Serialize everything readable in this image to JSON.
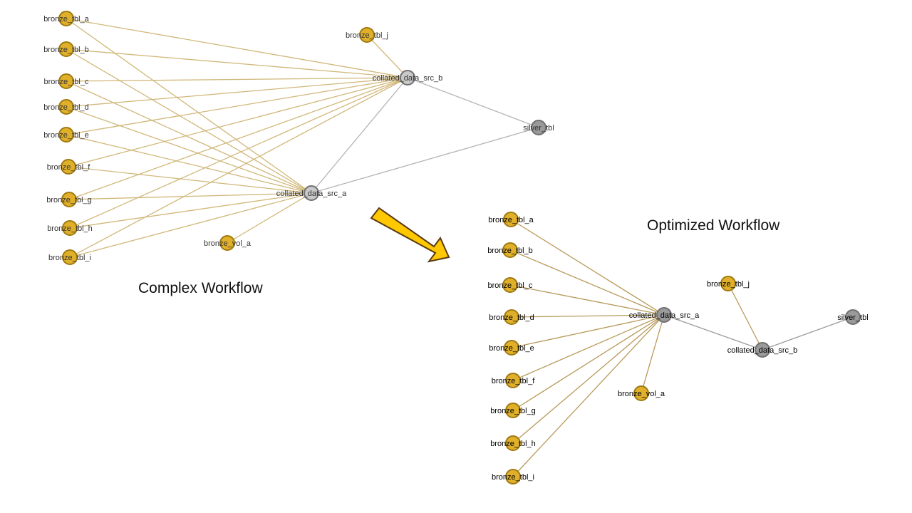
{
  "colors": {
    "bronze_fill": "#e0b02a",
    "bronze_stroke": "#a07a10",
    "gray_light_fill": "#c8c8c8",
    "gray_dark_fill": "#9a9a9a",
    "gray_stroke": "#707070",
    "edge_gold": "#d1b87a",
    "edge_gold_dark": "#b89a5a",
    "edge_gray": "#b4b4b4",
    "edge_gray_dark": "#9a9a9a",
    "arrow_fill": "#ffc800",
    "arrow_stroke": "#5a3a10"
  },
  "captions": {
    "complex": "Complex Workflow",
    "optimized": "Optimized Workflow"
  },
  "complex_graph": {
    "nodes": [
      {
        "id": "bronze_tbl_a",
        "label": "bronze_tbl_a",
        "kind": "bronze"
      },
      {
        "id": "bronze_tbl_b",
        "label": "bronze_tbl_b",
        "kind": "bronze"
      },
      {
        "id": "bronze_tbl_c",
        "label": "bronze_tbl_c",
        "kind": "bronze"
      },
      {
        "id": "bronze_tbl_d",
        "label": "bronze_tbl_d",
        "kind": "bronze"
      },
      {
        "id": "bronze_tbl_e",
        "label": "bronze_tbl_e",
        "kind": "bronze"
      },
      {
        "id": "bronze_tbl_f",
        "label": "bronze_tbl_f",
        "kind": "bronze"
      },
      {
        "id": "bronze_tbl_g",
        "label": "bronze_tbl_g",
        "kind": "bronze"
      },
      {
        "id": "bronze_tbl_h",
        "label": "bronze_tbl_h",
        "kind": "bronze"
      },
      {
        "id": "bronze_tbl_i",
        "label": "bronze_tbl_i",
        "kind": "bronze"
      },
      {
        "id": "bronze_tbl_j",
        "label": "bronze_tbl_j",
        "kind": "bronze"
      },
      {
        "id": "bronze_vol_a",
        "label": "bronze_vol_a",
        "kind": "bronze"
      },
      {
        "id": "collated_data_src_a",
        "label": "collated_data_src_a",
        "kind": "collated"
      },
      {
        "id": "collated_data_src_b",
        "label": "collated_data_src_b",
        "kind": "collated"
      },
      {
        "id": "silver_tbl",
        "label": "silver_tbl",
        "kind": "silver"
      }
    ],
    "edges": [
      [
        "bronze_tbl_a",
        "collated_data_src_b"
      ],
      [
        "bronze_tbl_a",
        "collated_data_src_a"
      ],
      [
        "bronze_tbl_b",
        "collated_data_src_b"
      ],
      [
        "bronze_tbl_b",
        "collated_data_src_a"
      ],
      [
        "bronze_tbl_c",
        "collated_data_src_b"
      ],
      [
        "bronze_tbl_c",
        "collated_data_src_a"
      ],
      [
        "bronze_tbl_d",
        "collated_data_src_b"
      ],
      [
        "bronze_tbl_d",
        "collated_data_src_a"
      ],
      [
        "bronze_tbl_e",
        "collated_data_src_b"
      ],
      [
        "bronze_tbl_e",
        "collated_data_src_a"
      ],
      [
        "bronze_tbl_f",
        "collated_data_src_b"
      ],
      [
        "bronze_tbl_f",
        "collated_data_src_a"
      ],
      [
        "bronze_tbl_g",
        "collated_data_src_b"
      ],
      [
        "bronze_tbl_g",
        "collated_data_src_a"
      ],
      [
        "bronze_tbl_h",
        "collated_data_src_b"
      ],
      [
        "bronze_tbl_h",
        "collated_data_src_a"
      ],
      [
        "bronze_tbl_i",
        "collated_data_src_b"
      ],
      [
        "bronze_tbl_i",
        "collated_data_src_a"
      ],
      [
        "bronze_tbl_j",
        "collated_data_src_b"
      ],
      [
        "bronze_vol_a",
        "collated_data_src_a"
      ],
      [
        "collated_data_src_a",
        "collated_data_src_b"
      ],
      [
        "collated_data_src_a",
        "silver_tbl"
      ],
      [
        "collated_data_src_b",
        "silver_tbl"
      ]
    ]
  },
  "optimized_graph": {
    "nodes": [
      {
        "id": "bronze_tbl_a",
        "label": "bronze_tbl_a",
        "kind": "bronze"
      },
      {
        "id": "bronze_tbl_b",
        "label": "bronze_tbl_b",
        "kind": "bronze"
      },
      {
        "id": "bronze_tbl_c",
        "label": "bronze_tbl_c",
        "kind": "bronze"
      },
      {
        "id": "bronze_tbl_d",
        "label": "bronze_tbl_d",
        "kind": "bronze"
      },
      {
        "id": "bronze_tbl_e",
        "label": "bronze_tbl_e",
        "kind": "bronze"
      },
      {
        "id": "bronze_tbl_f",
        "label": "bronze_tbl_f",
        "kind": "bronze"
      },
      {
        "id": "bronze_tbl_g",
        "label": "bronze_tbl_g",
        "kind": "bronze"
      },
      {
        "id": "bronze_tbl_h",
        "label": "bronze_tbl_h",
        "kind": "bronze"
      },
      {
        "id": "bronze_tbl_i",
        "label": "bronze_tbl_i",
        "kind": "bronze"
      },
      {
        "id": "bronze_tbl_j",
        "label": "bronze_tbl_j",
        "kind": "bronze"
      },
      {
        "id": "bronze_vol_a",
        "label": "bronze_vol_a",
        "kind": "bronze"
      },
      {
        "id": "collated_data_src_a",
        "label": "collated_data_src_a",
        "kind": "collated"
      },
      {
        "id": "collated_data_src_b",
        "label": "collated_data_src_b",
        "kind": "collated"
      },
      {
        "id": "silver_tbl",
        "label": "silver_tbl",
        "kind": "silver"
      }
    ],
    "edges": [
      [
        "bronze_tbl_a",
        "collated_data_src_a"
      ],
      [
        "bronze_tbl_b",
        "collated_data_src_a"
      ],
      [
        "bronze_tbl_c",
        "collated_data_src_a"
      ],
      [
        "bronze_tbl_d",
        "collated_data_src_a"
      ],
      [
        "bronze_tbl_e",
        "collated_data_src_a"
      ],
      [
        "bronze_tbl_f",
        "collated_data_src_a"
      ],
      [
        "bronze_tbl_g",
        "collated_data_src_a"
      ],
      [
        "bronze_tbl_h",
        "collated_data_src_a"
      ],
      [
        "bronze_tbl_i",
        "collated_data_src_a"
      ],
      [
        "bronze_vol_a",
        "collated_data_src_a"
      ],
      [
        "bronze_tbl_j",
        "collated_data_src_b"
      ],
      [
        "collated_data_src_a",
        "collated_data_src_b"
      ],
      [
        "collated_data_src_b",
        "silver_tbl"
      ]
    ]
  }
}
